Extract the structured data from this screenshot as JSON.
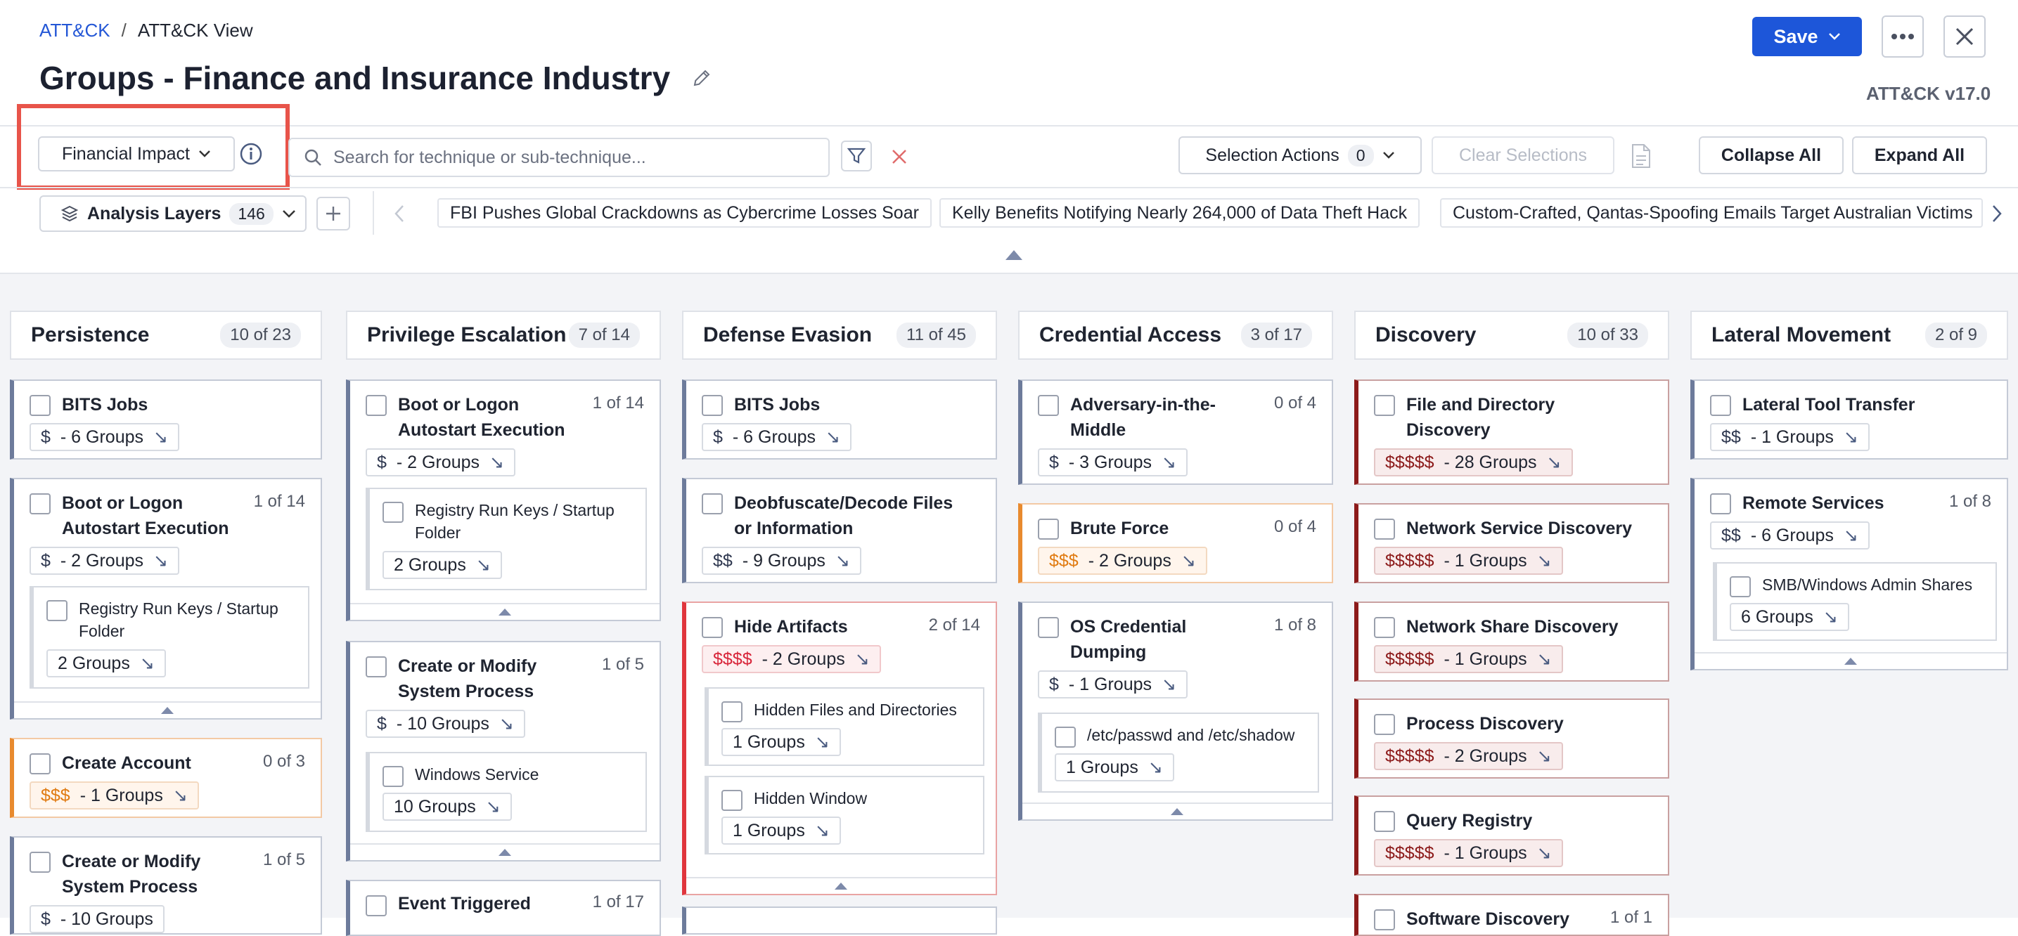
{
  "breadcrumb": {
    "root": "ATT&CK",
    "separator": "/",
    "current": "ATT&CK View"
  },
  "page_title": "Groups - Finance and Insurance Industry",
  "version": "ATT&CK v17.0",
  "header": {
    "save_label": "Save"
  },
  "toolbar": {
    "impact_select": "Financial Impact",
    "search_placeholder": "Search for technique or sub-technique...",
    "selection_actions": "Selection Actions",
    "selection_count": "0",
    "clear_selections": "Clear Selections",
    "collapse_all": "Collapse All",
    "expand_all": "Expand All"
  },
  "layers": {
    "label": "Analysis Layers",
    "count": "146",
    "chips": [
      "FBI Pushes Global Crackdowns as Cybercrime Losses Soar",
      "Kelly Benefits Notifying Nearly 264,000 of Data Theft Hack",
      "Custom-Crafted, Qantas-Spoofing Emails Target Australian Victims"
    ]
  },
  "columns": [
    {
      "name": "Persistence",
      "count": "10 of 23"
    },
    {
      "name": "Privilege Escalation",
      "count": "7 of 14"
    },
    {
      "name": "Defense Evasion",
      "count": "11 of 45"
    },
    {
      "name": "Credential Access",
      "count": "3 of 17"
    },
    {
      "name": "Discovery",
      "count": "10 of 33"
    },
    {
      "name": "Lateral Movement",
      "count": "2 of 9"
    }
  ],
  "cards": {
    "p_bits": {
      "title": "BITS Jobs",
      "dollars": "$",
      "groups": "- 6 Groups"
    },
    "p_boot": {
      "title1": "Boot or Logon",
      "title2": "Autostart Execution",
      "sub": "1 of 14",
      "dollars": "$",
      "groups": "- 2 Groups",
      "child": {
        "t1": "Registry Run Keys / Startup",
        "t2": "Folder",
        "groups": "2 Groups"
      }
    },
    "p_create": {
      "title": "Create Account",
      "sub": "0 of 3",
      "dollars": "$$$",
      "groups": "- 1 Groups"
    },
    "p_modify": {
      "title1": "Create or Modify",
      "title2": "System Process",
      "sub": "1 of 5",
      "dollars": "$",
      "groups": "- 10 Groups"
    },
    "pe_boot": {
      "title1": "Boot or Logon",
      "title2": "Autostart Execution",
      "sub": "1 of 14",
      "dollars": "$",
      "groups": "- 2 Groups",
      "child": {
        "t1": "Registry Run Keys / Startup",
        "t2": "Folder",
        "groups": "2 Groups"
      }
    },
    "pe_modify": {
      "title1": "Create or Modify",
      "title2": "System Process",
      "sub": "1 of 5",
      "dollars": "$",
      "groups": "- 10 Groups",
      "child": {
        "t1": "Windows Service",
        "groups": "10 Groups"
      }
    },
    "pe_event": {
      "title": "Event Triggered",
      "sub": "1 of 17"
    },
    "d_bits": {
      "title": "BITS Jobs",
      "dollars": "$",
      "groups": "- 6 Groups"
    },
    "d_deob": {
      "title1": "Deobfuscate/Decode Files",
      "title2": "or Information",
      "dollars": "$$",
      "groups": "- 9 Groups"
    },
    "d_hide": {
      "title": "Hide Artifacts",
      "sub": "2 of 14",
      "dollars": "$$$$",
      "groups": "- 2 Groups",
      "child1": {
        "t1": "Hidden Files and Directories",
        "groups": "1 Groups"
      },
      "child2": {
        "t1": "Hidden Window",
        "groups": "1 Groups"
      }
    },
    "c_aitm": {
      "title1": "Adversary-in-the-",
      "title2": "Middle",
      "sub": "0 of 4",
      "dollars": "$",
      "groups": "- 3 Groups"
    },
    "c_brute": {
      "title": "Brute Force",
      "sub": "0 of 4",
      "dollars": "$$$",
      "groups": "- 2 Groups"
    },
    "c_osc": {
      "title1": "OS Credential",
      "title2": "Dumping",
      "sub": "1 of 8",
      "dollars": "$",
      "groups": "- 1 Groups",
      "child": {
        "t1": "/etc/passwd and /etc/shadow",
        "groups": "1 Groups"
      }
    },
    "di_file": {
      "title1": "File and Directory",
      "title2": "Discovery",
      "dollars": "$$$$$",
      "groups": "- 28 Groups"
    },
    "di_net": {
      "title": "Network Service Discovery",
      "dollars": "$$$$$",
      "groups": "- 1 Groups"
    },
    "di_share": {
      "title": "Network Share Discovery",
      "dollars": "$$$$$",
      "groups": "- 1 Groups"
    },
    "di_proc": {
      "title": "Process Discovery",
      "dollars": "$$$$$",
      "groups": "- 2 Groups"
    },
    "di_query": {
      "title": "Query Registry",
      "dollars": "$$$$$",
      "groups": "- 1 Groups"
    },
    "di_soft": {
      "title": "Software Discovery",
      "sub": "1 of 1"
    },
    "l_tool": {
      "title": "Lateral Tool Transfer",
      "dollars": "$$",
      "groups": "- 1 Groups"
    },
    "l_remote": {
      "title": "Remote Services",
      "sub": "1 of 8",
      "dollars": "$$",
      "groups": "- 6 Groups",
      "child": {
        "t1": "SMB/Windows Admin Shares",
        "groups": "6 Groups"
      }
    }
  },
  "colors": {
    "accent": "#1d56d9",
    "highlight": "#e8544a",
    "cost1": "#6d7b9b",
    "cost3": "#e88a2e",
    "cost4": "#e0353d",
    "cost5": "#8c1a1a"
  }
}
